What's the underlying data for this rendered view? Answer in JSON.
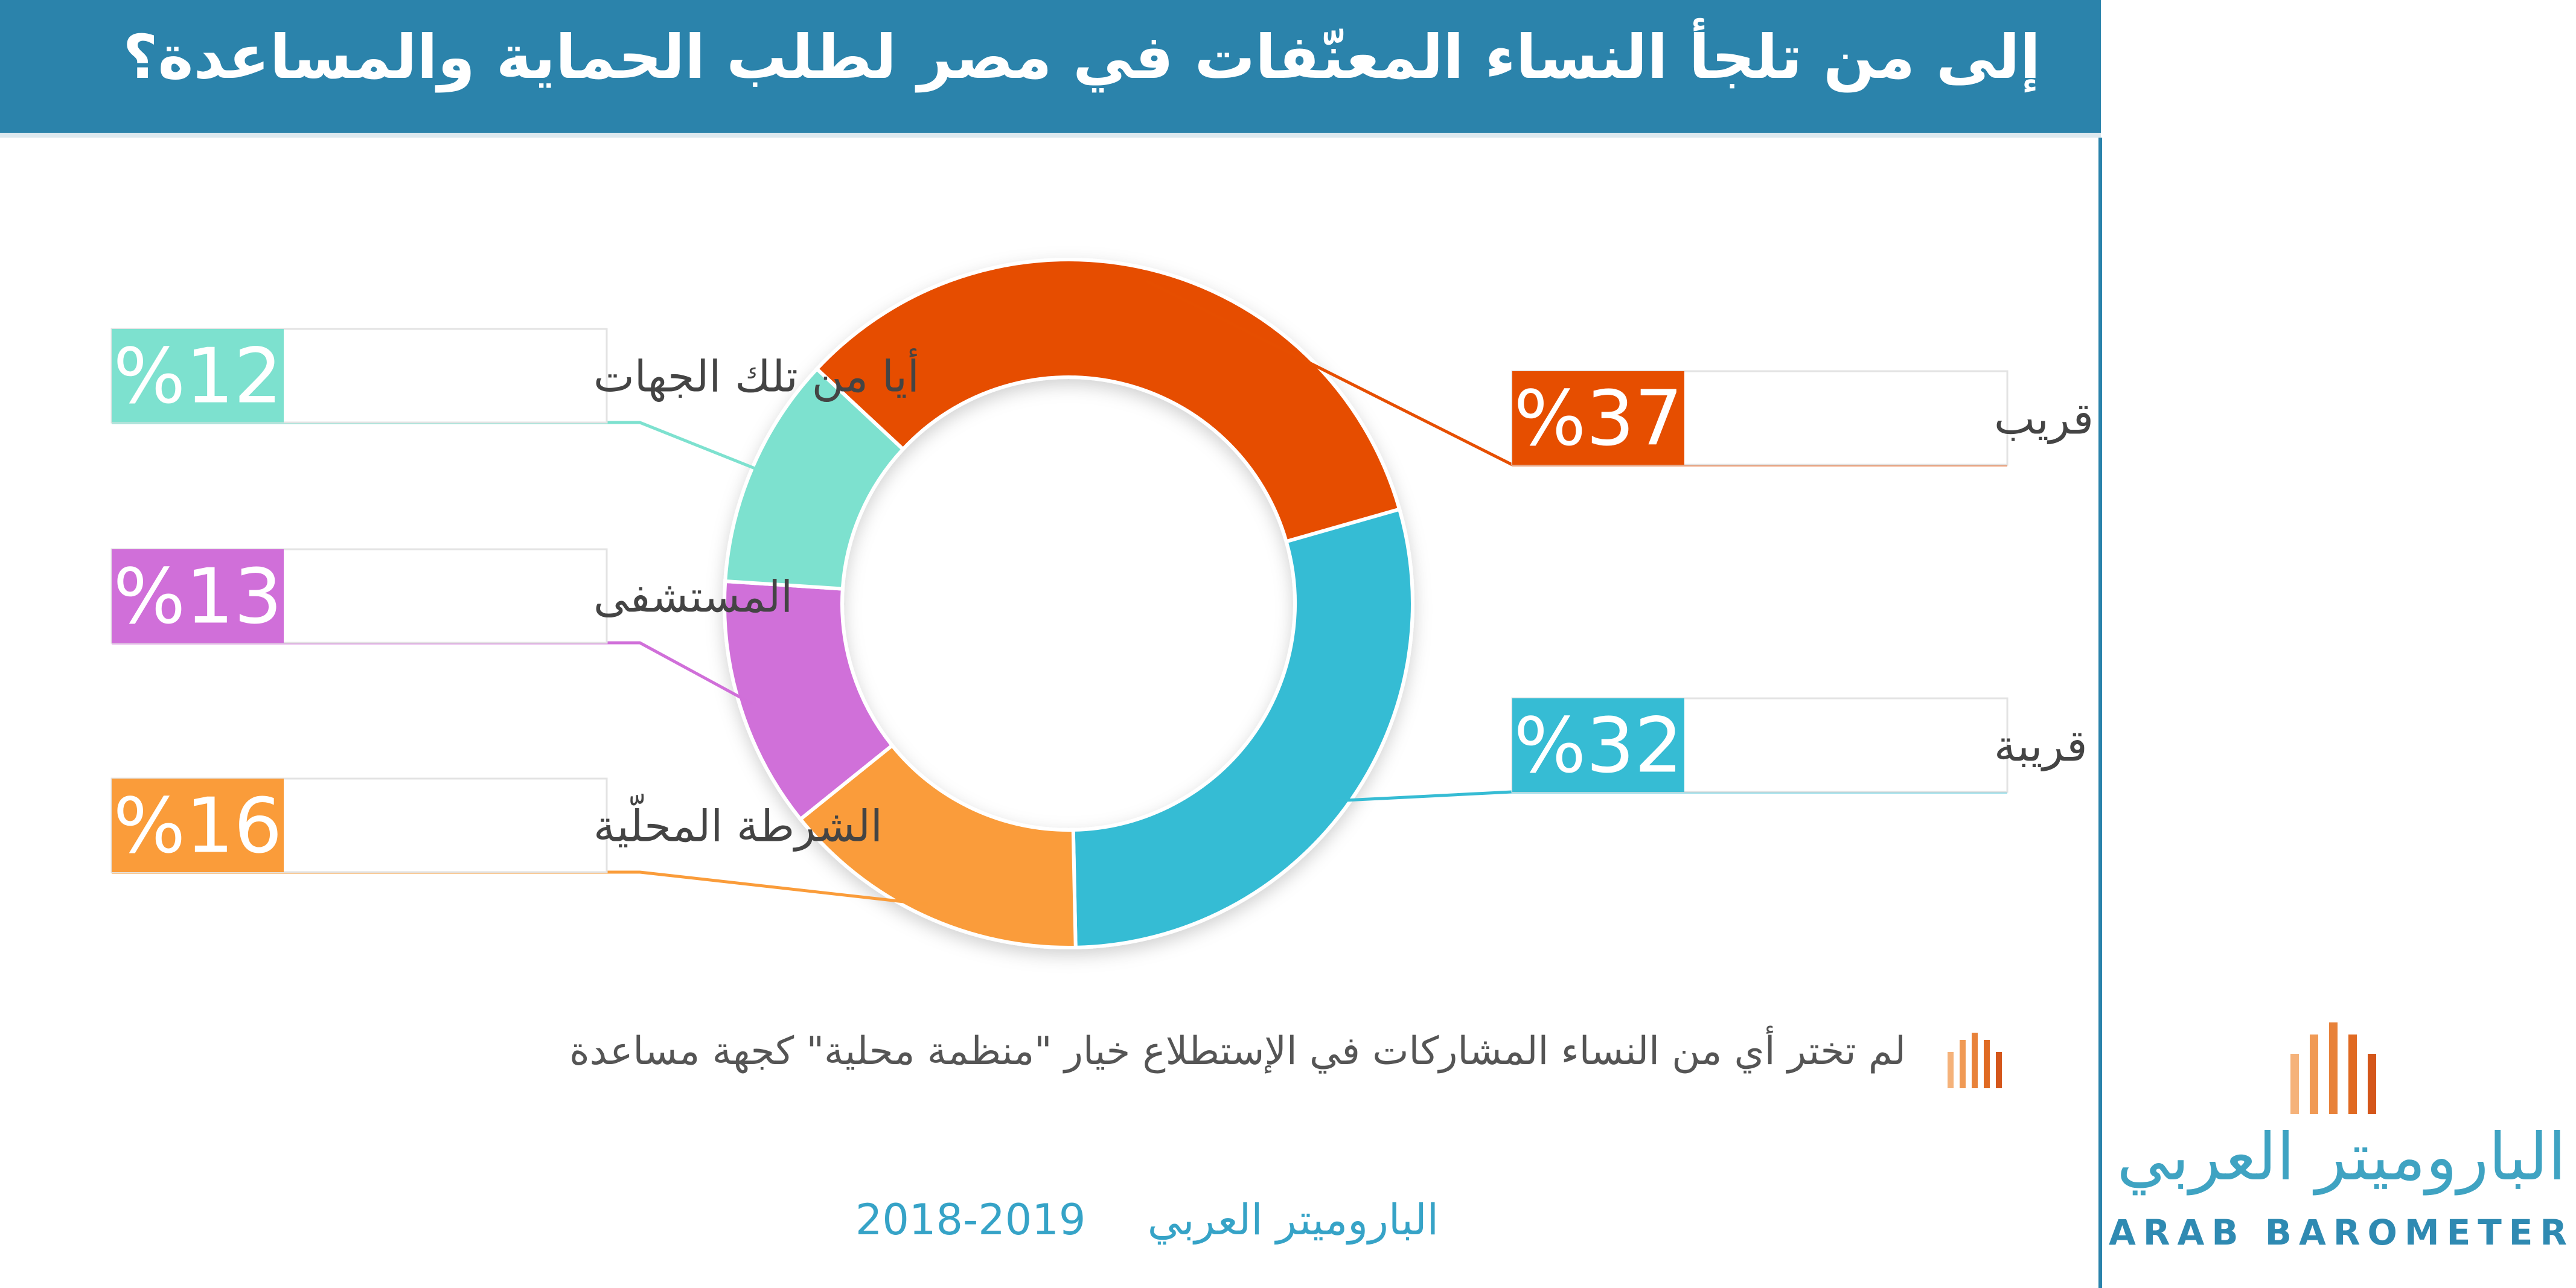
{
  "header": {
    "title": "إلى من تلجأ النساء المعنّفات في مصر لطلب الحماية والمساعدة؟"
  },
  "chart_data": {
    "type": "pie",
    "title": "إلى من تلجأ النساء المعنّفات في مصر لطلب الحماية والمساعدة؟",
    "slices": [
      {
        "label": "قريب",
        "value": 37,
        "display": "%37",
        "color": "#e64e00"
      },
      {
        "label": "قريبة",
        "value": 32,
        "display": "%32",
        "color": "#36bcd4"
      },
      {
        "label": "الشرطة المحلّية",
        "value": 16,
        "display": "%16",
        "color": "#fa9c3a"
      },
      {
        "label": "المستشفى",
        "value": 13,
        "display": "%13",
        "color": "#d06fd9"
      },
      {
        "label": "أيا من تلك الجهات",
        "value": 12,
        "display": "%12",
        "color": "#7de1cf"
      }
    ],
    "legend_position": "around"
  },
  "note": {
    "text": "لم تختر أي من النساء المشاركات في الإستطلاع خيار \"منظمة محلية\"  كجهة مساعدة",
    "icon": "bars-icon"
  },
  "footer": {
    "source": "الباروميتر العربي",
    "years": "2019-2018"
  },
  "logo": {
    "arabic": "الباروميتر العربي",
    "english": "ARAB BAROMETER",
    "bar_colors": [
      "#f5b27a",
      "#f09a55",
      "#e8823a",
      "#e06a22",
      "#d4561a"
    ]
  }
}
